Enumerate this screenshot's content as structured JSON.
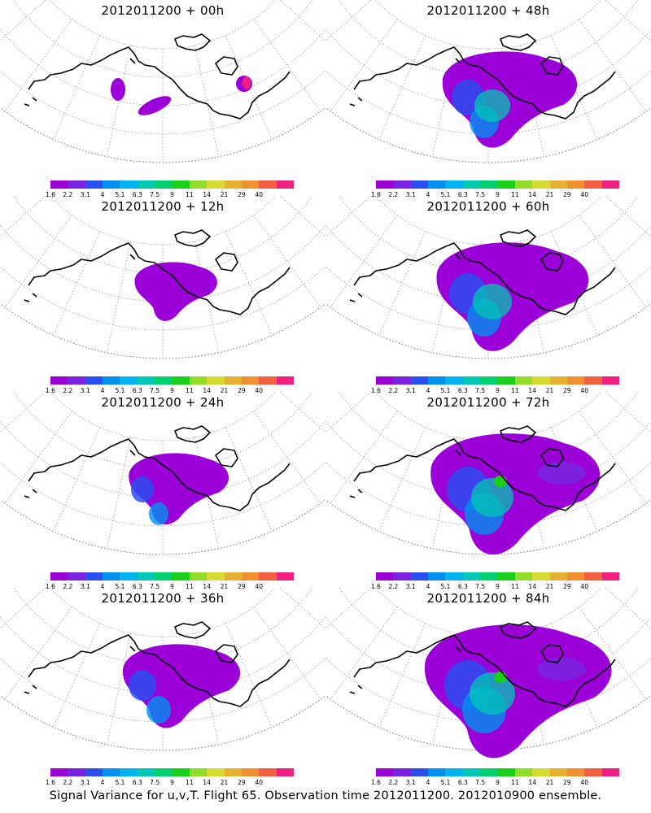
{
  "panels": [
    {
      "title": "2012011200 + 00h",
      "stage": 0
    },
    {
      "title": "2012011200 + 48h",
      "stage": 4
    },
    {
      "title": "2012011200 + 12h",
      "stage": 1
    },
    {
      "title": "2012011200 + 60h",
      "stage": 5
    },
    {
      "title": "2012011200 + 24h",
      "stage": 2
    },
    {
      "title": "2012011200 + 72h",
      "stage": 6
    },
    {
      "title": "2012011200 + 36h",
      "stage": 3
    },
    {
      "title": "2012011200 + 84h",
      "stage": 7
    }
  ],
  "colorbar": {
    "labels": [
      "1.6",
      "2.2",
      "3.1",
      "4",
      "5.1",
      "6.3",
      "7.5",
      "9",
      "11",
      "14",
      "21",
      "29",
      "40"
    ],
    "colors": [
      "#9b00d8",
      "#7a22e0",
      "#2a4ef0",
      "#0090f0",
      "#00b4ee",
      "#00c8b4",
      "#00d070",
      "#18d018",
      "#90dc28",
      "#d8dc30",
      "#e8b030",
      "#f09030",
      "#f06040",
      "#f02080"
    ]
  },
  "footer": "Signal Variance for u,v,T. Flight 65. Observation time 2012011200. 2012010900 ensemble."
}
